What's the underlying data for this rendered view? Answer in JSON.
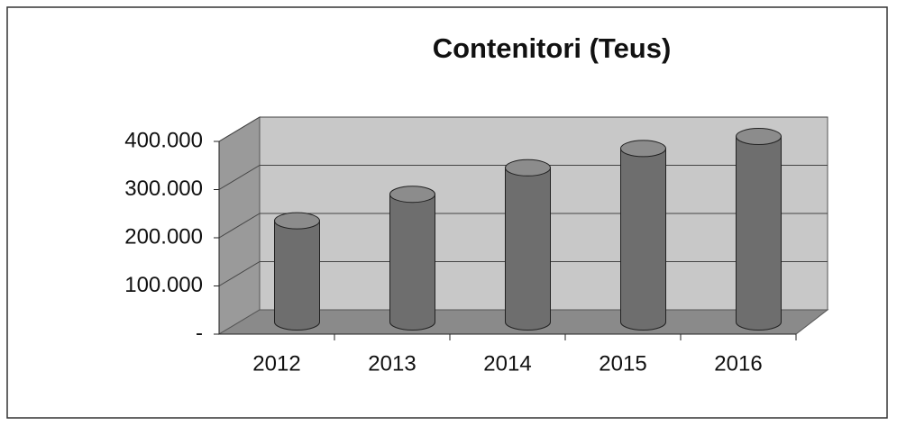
{
  "chart_data": {
    "type": "bar3d",
    "title": "Contenitori (Teus)",
    "categories": [
      "2012",
      "2013",
      "2014",
      "2015",
      "2016"
    ],
    "values": [
      210000,
      265000,
      320000,
      360000,
      385000
    ],
    "color": "#6e6e6e",
    "ylim": [
      0,
      400000
    ],
    "yticks": [
      {
        "value": 0,
        "label": "-"
      },
      {
        "value": 100000,
        "label": "100.000"
      },
      {
        "value": 200000,
        "label": "200.000"
      },
      {
        "value": 300000,
        "label": "300.000"
      },
      {
        "value": 400000,
        "label": "400.000"
      }
    ],
    "grid": true
  }
}
